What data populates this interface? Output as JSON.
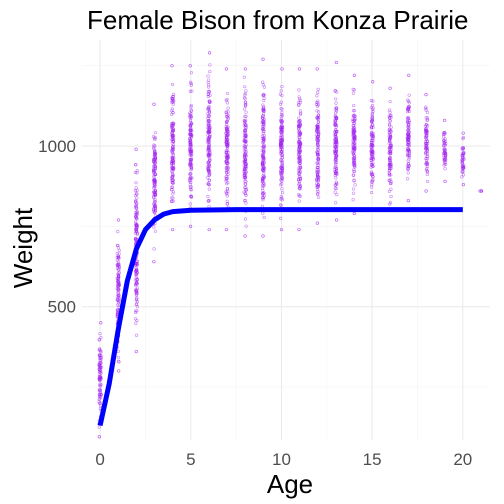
{
  "chart_data": {
    "type": "scatter",
    "title": "Female Bison from Konza Prairie",
    "xlabel": "Age",
    "ylabel": "Weight",
    "xlim": [
      -1,
      21.5
    ],
    "ylim": [
      85,
      1330
    ],
    "x_ticks": [
      0,
      5,
      10,
      15,
      20
    ],
    "y_ticks": [
      500,
      1000
    ],
    "grid": true,
    "legend": "none",
    "point_color": "#a020f0",
    "line_color": "#0000ff",
    "series": [
      {
        "type": "scatter",
        "points_by_age": [
          {
            "age": 0,
            "min": 95,
            "max": 450
          },
          {
            "age": 1,
            "min": 300,
            "max": 770
          },
          {
            "age": 2,
            "min": 360,
            "max": 990
          },
          {
            "age": 3,
            "min": 640,
            "max": 1130
          },
          {
            "age": 4,
            "min": 740,
            "max": 1250
          },
          {
            "age": 5,
            "min": 750,
            "max": 1250
          },
          {
            "age": 6,
            "min": 740,
            "max": 1290
          },
          {
            "age": 7,
            "min": 740,
            "max": 1240
          },
          {
            "age": 8,
            "min": 720,
            "max": 1240
          },
          {
            "age": 9,
            "min": 720,
            "max": 1270
          },
          {
            "age": 10,
            "min": 740,
            "max": 1240
          },
          {
            "age": 11,
            "min": 740,
            "max": 1240
          },
          {
            "age": 12,
            "min": 760,
            "max": 1240
          },
          {
            "age": 13,
            "min": 770,
            "max": 1260
          },
          {
            "age": 14,
            "min": 790,
            "max": 1220
          },
          {
            "age": 15,
            "min": 800,
            "max": 1200
          },
          {
            "age": 16,
            "min": 800,
            "max": 1180
          },
          {
            "age": 17,
            "min": 830,
            "max": 1220
          },
          {
            "age": 18,
            "min": 860,
            "max": 1160
          },
          {
            "age": 19,
            "min": 890,
            "max": 1080
          },
          {
            "age": 20,
            "min": 880,
            "max": 1040
          },
          {
            "age": 21,
            "min": 860,
            "max": 860
          }
        ]
      },
      {
        "type": "line",
        "x": [
          0,
          0.5,
          1,
          1.5,
          2,
          2.5,
          3,
          3.5,
          4,
          5,
          6,
          7.5,
          10,
          15,
          20
        ],
        "y": [
          130,
          260,
          430,
          580,
          680,
          740,
          770,
          788,
          796,
          800,
          801,
          802,
          802,
          802,
          802
        ]
      }
    ]
  }
}
